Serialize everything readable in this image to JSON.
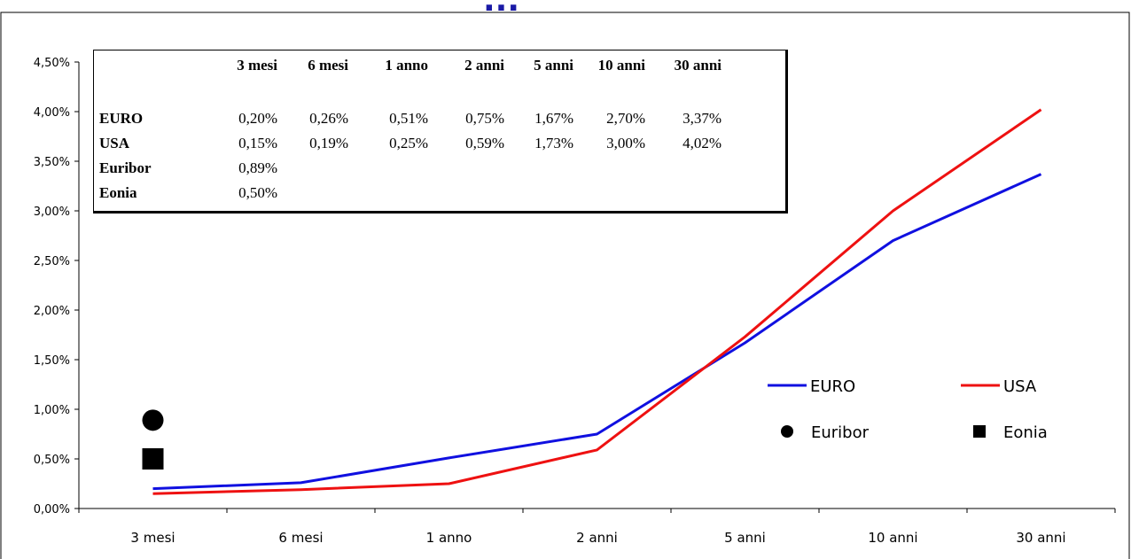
{
  "title": "...",
  "table": {
    "columns": [
      "3 mesi",
      "6 mesi",
      "1 anno",
      "2 anni",
      "5 anni",
      "10 anni",
      "30 anni"
    ],
    "rows": [
      {
        "label": "EURO",
        "values": [
          "0,20%",
          "0,26%",
          "0,51%",
          "0,75%",
          "1,67%",
          "2,70%",
          "3,37%"
        ]
      },
      {
        "label": "USA",
        "values": [
          "0,15%",
          "0,19%",
          "0,25%",
          "0,59%",
          "1,73%",
          "3,00%",
          "4,02%"
        ]
      },
      {
        "label": "Euribor",
        "values": [
          "0,89%"
        ]
      },
      {
        "label": "Eonia",
        "values": [
          "0,50%"
        ]
      }
    ]
  },
  "legend": {
    "euro": "EURO",
    "usa": "USA",
    "euribor": "Euribor",
    "eonia": "Eonia"
  },
  "colors": {
    "euro": "#1010e0",
    "usa": "#ee1111",
    "title": "#1a1aa6",
    "marker": "#000000"
  },
  "chart_data": {
    "type": "line",
    "categories": [
      "3 mesi",
      "6 mesi",
      "1 anno",
      "2 anni",
      "5 anni",
      "10 anni",
      "30 anni"
    ],
    "series": [
      {
        "name": "EURO",
        "values": [
          0.2,
          0.26,
          0.51,
          0.75,
          1.67,
          2.7,
          3.37
        ]
      },
      {
        "name": "USA",
        "values": [
          0.15,
          0.19,
          0.25,
          0.59,
          1.73,
          3.0,
          4.02
        ]
      }
    ],
    "points": [
      {
        "name": "Euribor",
        "category": "3 mesi",
        "value": 0.89,
        "marker": "circle"
      },
      {
        "name": "Eonia",
        "category": "3 mesi",
        "value": 0.5,
        "marker": "square"
      }
    ],
    "y_ticks": [
      "0,00%",
      "0,50%",
      "1,00%",
      "1,50%",
      "2,00%",
      "2,50%",
      "3,00%",
      "3,50%",
      "4,00%",
      "4,50%"
    ],
    "ylim": [
      0,
      4.5
    ],
    "legend_position": "bottom-right",
    "grid": false
  }
}
